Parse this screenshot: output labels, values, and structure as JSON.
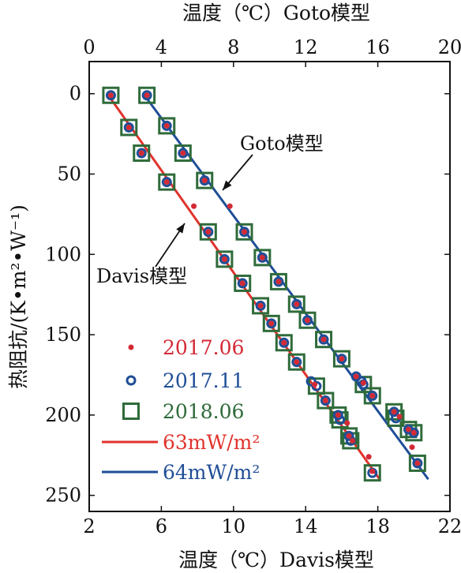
{
  "chart_data": {
    "type": "scatter",
    "top_axis": {
      "label": "温度（℃）Goto模型",
      "ticks": [
        0,
        4,
        8,
        12,
        16,
        20
      ],
      "range": [
        0,
        20
      ]
    },
    "bottom_axis": {
      "label": "温度（℃）Davis模型",
      "ticks": [
        2,
        6,
        10,
        14,
        18,
        22
      ],
      "range": [
        2,
        22
      ]
    },
    "y_axis": {
      "label": "热阻抗/(K•m²•W⁻¹)",
      "ticks": [
        0,
        50,
        100,
        150,
        200,
        250
      ],
      "range": [
        -20,
        260
      ],
      "inverted": true
    },
    "grid": false,
    "annotations": [
      {
        "text": "Goto模型"
      },
      {
        "text": "Davis模型"
      }
    ],
    "legend": {
      "position": "left",
      "entries": [
        {
          "label": "2017.06",
          "color": "#d42a36",
          "marker": "dot"
        },
        {
          "label": "2017.11",
          "color": "#1f4e96",
          "marker": "ring"
        },
        {
          "label": "2018.06",
          "color": "#2f6b3a",
          "marker": "square"
        },
        {
          "label": "63mW/m²",
          "color": "#e0332c",
          "marker": "line"
        },
        {
          "label": "64mW/m²",
          "color": "#1f4e96",
          "marker": "line"
        }
      ]
    },
    "series": [
      {
        "name": "2017.06",
        "axis": "bottom",
        "marker": "dot",
        "color": "#d42a36",
        "points": [
          [
            3.2,
            1
          ],
          [
            4.2,
            21
          ],
          [
            4.9,
            37
          ],
          [
            6.3,
            55
          ],
          [
            7.8,
            70
          ],
          [
            8.6,
            86
          ],
          [
            9.5,
            103
          ],
          [
            10.5,
            118
          ],
          [
            11.5,
            132
          ],
          [
            12.1,
            143
          ],
          [
            12.8,
            155
          ],
          [
            13.5,
            167
          ],
          [
            14.5,
            181
          ],
          [
            15.1,
            191
          ],
          [
            15.8,
            200
          ],
          [
            16.3,
            205
          ],
          [
            16.4,
            213
          ],
          [
            16.6,
            216
          ],
          [
            17.5,
            226
          ],
          [
            17.7,
            235
          ]
        ]
      },
      {
        "name": "2017.11",
        "axis": "bottom",
        "marker": "ring",
        "color": "#1f4e96",
        "points": [
          [
            3.2,
            1
          ],
          [
            4.2,
            21
          ],
          [
            4.9,
            37
          ],
          [
            6.3,
            55
          ],
          [
            8.6,
            86
          ],
          [
            9.5,
            103
          ],
          [
            10.5,
            118
          ],
          [
            11.5,
            132
          ],
          [
            12.1,
            143
          ],
          [
            12.8,
            155
          ],
          [
            13.5,
            167
          ],
          [
            14.3,
            179
          ],
          [
            14.6,
            182
          ],
          [
            15.1,
            191
          ],
          [
            15.8,
            200
          ],
          [
            15.9,
            203
          ],
          [
            16.4,
            213
          ],
          [
            16.5,
            216
          ],
          [
            17.7,
            236
          ]
        ]
      },
      {
        "name": "2018.06",
        "axis": "bottom",
        "marker": "square",
        "color": "#2f6b3a",
        "points": [
          [
            3.2,
            1
          ],
          [
            4.2,
            21
          ],
          [
            4.9,
            37
          ],
          [
            6.3,
            55
          ],
          [
            8.6,
            86
          ],
          [
            9.5,
            103
          ],
          [
            10.5,
            118
          ],
          [
            11.5,
            132
          ],
          [
            12.1,
            143
          ],
          [
            12.8,
            155
          ],
          [
            13.5,
            167
          ],
          [
            14.6,
            182
          ],
          [
            15.1,
            191
          ],
          [
            15.8,
            200
          ],
          [
            15.9,
            203
          ],
          [
            16.4,
            213
          ],
          [
            16.5,
            216
          ],
          [
            17.7,
            236
          ]
        ]
      },
      {
        "name": "2017.06",
        "axis": "top",
        "marker": "dot",
        "color": "#d42a36",
        "points": [
          [
            3.2,
            1
          ],
          [
            4.3,
            20
          ],
          [
            5.2,
            37
          ],
          [
            6.4,
            54
          ],
          [
            7.8,
            70
          ],
          [
            8.6,
            86
          ],
          [
            9.6,
            102
          ],
          [
            10.5,
            117
          ],
          [
            11.5,
            131
          ],
          [
            12.1,
            141
          ],
          [
            13.0,
            153
          ],
          [
            14.0,
            165
          ],
          [
            14.8,
            176
          ],
          [
            15.2,
            180
          ],
          [
            15.7,
            188
          ],
          [
            16.9,
            198
          ],
          [
            17.2,
            201
          ],
          [
            17.7,
            209
          ],
          [
            18.0,
            211
          ],
          [
            17.9,
            220
          ],
          [
            18.2,
            230
          ]
        ]
      },
      {
        "name": "2017.11",
        "axis": "top",
        "marker": "ring",
        "color": "#1f4e96",
        "points": [
          [
            3.2,
            1
          ],
          [
            4.3,
            20
          ],
          [
            5.2,
            37
          ],
          [
            6.4,
            54
          ],
          [
            8.6,
            86
          ],
          [
            9.6,
            102
          ],
          [
            10.5,
            117
          ],
          [
            11.5,
            131
          ],
          [
            12.1,
            141
          ],
          [
            13.0,
            153
          ],
          [
            14.0,
            165
          ],
          [
            14.8,
            176
          ],
          [
            15.1,
            179
          ],
          [
            15.2,
            181
          ],
          [
            15.7,
            188
          ],
          [
            16.9,
            198
          ],
          [
            17.0,
            202
          ],
          [
            17.7,
            209
          ],
          [
            18.0,
            211
          ],
          [
            18.2,
            230
          ]
        ]
      },
      {
        "name": "2018.06",
        "axis": "top",
        "marker": "square",
        "color": "#2f6b3a",
        "points": [
          [
            3.2,
            1
          ],
          [
            4.3,
            20
          ],
          [
            5.2,
            37
          ],
          [
            6.4,
            54
          ],
          [
            8.6,
            86
          ],
          [
            9.6,
            102
          ],
          [
            10.5,
            117
          ],
          [
            11.5,
            131
          ],
          [
            12.1,
            141
          ],
          [
            13.0,
            153
          ],
          [
            14.0,
            165
          ],
          [
            15.2,
            181
          ],
          [
            15.7,
            188
          ],
          [
            16.9,
            198
          ],
          [
            17.0,
            202
          ],
          [
            17.7,
            209
          ],
          [
            18.0,
            211
          ],
          [
            18.2,
            230
          ]
        ]
      }
    ],
    "fit_lines": [
      {
        "name": "63mW/m²",
        "axis": "bottom",
        "color": "#e0332c",
        "from": [
          3.0,
          0
        ],
        "to": [
          18.1,
          240
        ]
      },
      {
        "name": "64mW/m²",
        "axis": "top",
        "color": "#1f4e96",
        "from": [
          3.0,
          0
        ],
        "to": [
          18.8,
          240
        ]
      }
    ]
  }
}
